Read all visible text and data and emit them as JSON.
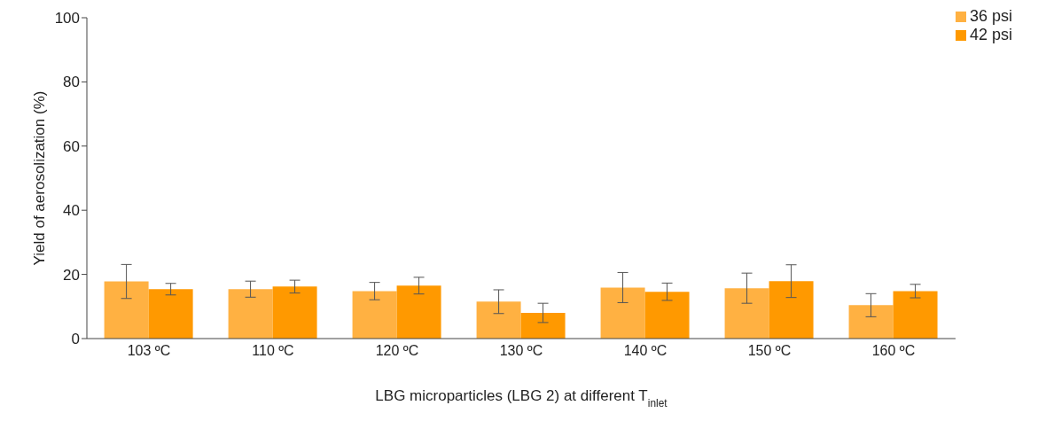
{
  "chart_data": {
    "type": "bar",
    "xlabel": "LBG microparticles (LBG 2) at different T$_{inlet}$",
    "ylabel": "Yield of aerosolization (%)",
    "categories": [
      "103 ºC",
      "110 ºC",
      "120 ºC",
      "130 ºC",
      "140 ºC",
      "150 ºC",
      "160 ºC"
    ],
    "series": [
      {
        "name": "36 psi",
        "color": "#ffb142",
        "values": [
          17.8,
          15.4,
          14.8,
          11.5,
          15.9,
          15.7,
          10.4
        ],
        "errors": [
          5.3,
          2.5,
          2.7,
          3.7,
          4.7,
          4.7,
          3.6
        ]
      },
      {
        "name": "42 psi",
        "color": "#ff9900",
        "values": [
          15.4,
          16.2,
          16.5,
          8.0,
          14.6,
          17.9,
          14.8
        ],
        "errors": [
          1.8,
          2.0,
          2.6,
          3.0,
          2.7,
          5.1,
          2.1
        ]
      }
    ],
    "ylim": [
      0,
      100
    ],
    "yticks": [
      0,
      20,
      40,
      60,
      80,
      100
    ],
    "grid": false,
    "legend": "top right"
  }
}
